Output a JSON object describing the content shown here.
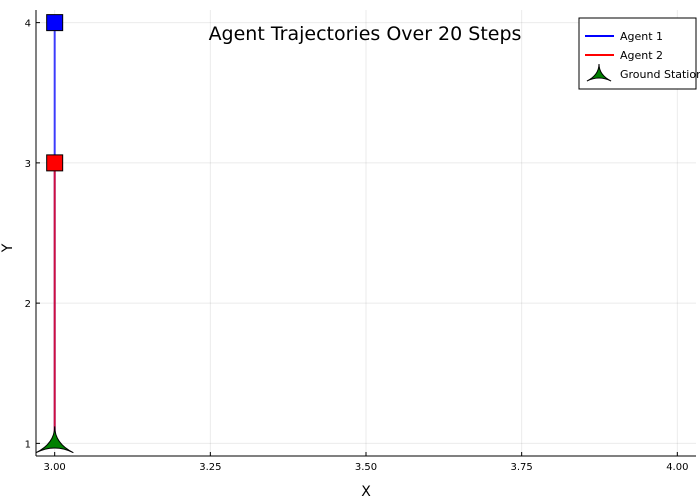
{
  "chart_data": {
    "type": "line",
    "title": "Agent Trajectories Over 20 Steps",
    "xlabel": "X",
    "ylabel": "Y",
    "xlim": [
      2.97,
      4.03
    ],
    "ylim": [
      0.91,
      4.09
    ],
    "xticks": [
      3.0,
      3.25,
      3.5,
      3.75,
      4.0
    ],
    "xtick_labels": [
      "3.00",
      "3.25",
      "3.50",
      "3.75",
      "4.00"
    ],
    "yticks": [
      1,
      2,
      3,
      4
    ],
    "ytick_labels": [
      "1",
      "2",
      "3",
      "4"
    ],
    "grid": true,
    "legend_position": "top-right",
    "series": [
      {
        "name": "Agent 1",
        "color": "#0000ff",
        "x": [
          3.0,
          3.0
        ],
        "y": [
          1.0,
          4.0
        ],
        "end_marker": "square"
      },
      {
        "name": "Agent 2",
        "color": "#ff0000",
        "x": [
          3.0,
          3.0
        ],
        "y": [
          1.0,
          3.0
        ],
        "end_marker": "square"
      }
    ],
    "ground_station": {
      "name": "Ground Station",
      "x": 3.0,
      "y": 1.0,
      "color": "#008000",
      "marker": "star"
    }
  }
}
